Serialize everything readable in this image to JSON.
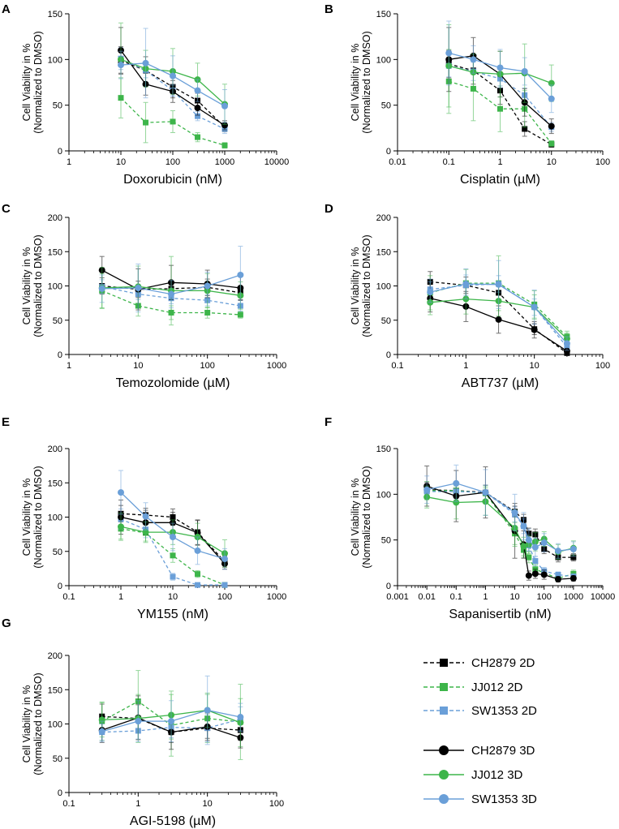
{
  "colors": {
    "CH2879": "#000000",
    "JJ012": "#3db54a",
    "SW1353": "#6a9fd8"
  },
  "legend": {
    "items": [
      {
        "label": "CH2879 2D",
        "line": "CH2879",
        "dim": "2D"
      },
      {
        "label": "JJ012 2D",
        "line": "JJ012",
        "dim": "2D"
      },
      {
        "label": "SW1353 2D",
        "line": "SW1353",
        "dim": "2D"
      },
      {
        "label": "CH2879 3D",
        "line": "CH2879",
        "dim": "3D"
      },
      {
        "label": "JJ012 3D",
        "line": "JJ012",
        "dim": "3D"
      },
      {
        "label": "SW1353 3D",
        "line": "SW1353",
        "dim": "3D"
      }
    ]
  },
  "chart_data": [
    {
      "panel": "A",
      "type": "line",
      "xscale": "log",
      "xlabel": "Doxorubicin (nM)",
      "ylabel_1": "Cell Viability in %",
      "ylabel_2": "(Normalized to DMSO)",
      "xlim": [
        1,
        10000
      ],
      "ylim": [
        0,
        150
      ],
      "xticks": [
        "1",
        "10",
        "100",
        "1000",
        "10000"
      ],
      "yticks": [
        "0",
        "50",
        "100",
        "150"
      ],
      "x": [
        10,
        30,
        100,
        300,
        1000
      ],
      "series": [
        {
          "name": "CH2879 2D",
          "values": [
            99,
            88,
            70,
            55,
            26
          ],
          "errors": [
            15,
            15,
            12,
            8,
            5
          ]
        },
        {
          "name": "JJ012 2D",
          "values": [
            58,
            31,
            32,
            15,
            6
          ],
          "errors": [
            22,
            22,
            12,
            5,
            3
          ]
        },
        {
          "name": "SW1353 2D",
          "values": [
            101,
            88,
            66,
            38,
            24
          ],
          "errors": [
            12,
            8,
            6,
            5,
            5
          ]
        },
        {
          "name": "CH2879 3D",
          "values": [
            110,
            73,
            65,
            47,
            28
          ],
          "errors": [
            25,
            12,
            12,
            8,
            5
          ]
        },
        {
          "name": "JJ012 3D",
          "values": [
            100,
            90,
            87,
            78,
            51
          ],
          "errors": [
            40,
            20,
            25,
            18,
            22
          ]
        },
        {
          "name": "SW1353 3D",
          "values": [
            94,
            96,
            82,
            66,
            49
          ],
          "errors": [
            15,
            38,
            22,
            12,
            18
          ]
        }
      ]
    },
    {
      "panel": "B",
      "type": "line",
      "xscale": "log",
      "xlabel": "Cisplatin (µM)",
      "ylabel_1": "Cell Viability in %",
      "ylabel_2": "(Normalized to DMSO)",
      "xlim": [
        0.01,
        100
      ],
      "ylim": [
        0,
        150
      ],
      "xticks": [
        "0.01",
        "0.1",
        "1",
        "10",
        "100"
      ],
      "yticks": [
        "0",
        "50",
        "100",
        "150"
      ],
      "x": [
        0.1,
        0.3,
        1,
        3,
        10
      ],
      "series": [
        {
          "name": "CH2879 2D",
          "values": [
            95,
            88,
            66,
            24,
            7
          ],
          "errors": [
            15,
            15,
            15,
            8,
            3
          ]
        },
        {
          "name": "JJ012 2D",
          "values": [
            76,
            68,
            46,
            46,
            8
          ],
          "errors": [
            35,
            35,
            25,
            20,
            3
          ]
        },
        {
          "name": "SW1353 2D",
          "values": [
            93,
            87,
            79,
            61,
            26
          ],
          "errors": [
            12,
            10,
            10,
            8,
            5
          ]
        },
        {
          "name": "CH2879 3D",
          "values": [
            100,
            104,
            84,
            53,
            27
          ],
          "errors": [
            35,
            20,
            25,
            15,
            8
          ]
        },
        {
          "name": "JJ012 3D",
          "values": [
            93,
            86,
            84,
            85,
            74
          ],
          "errors": [
            45,
            20,
            25,
            32,
            20
          ]
        },
        {
          "name": "SW1353 3D",
          "values": [
            107,
            100,
            91,
            87,
            57
          ],
          "errors": [
            35,
            15,
            20,
            15,
            15
          ]
        }
      ]
    },
    {
      "panel": "C",
      "type": "line",
      "xscale": "log",
      "xlabel": "Temozolomide (µM)",
      "ylabel_1": "Cell Viability in %",
      "ylabel_2": "(Normalized to DMSO)",
      "xlim": [
        1,
        1000
      ],
      "ylim": [
        0,
        200
      ],
      "xticks": [
        "1",
        "10",
        "100",
        "1000"
      ],
      "yticks": [
        "0",
        "50",
        "100",
        "150",
        "200"
      ],
      "x": [
        3,
        10,
        30,
        100,
        300
      ],
      "series": [
        {
          "name": "CH2879 2D",
          "values": [
            100,
            95,
            96,
            98,
            90
          ],
          "errors": [
            12,
            12,
            12,
            12,
            10
          ]
        },
        {
          "name": "JJ012 2D",
          "values": [
            93,
            71,
            61,
            61,
            58
          ],
          "errors": [
            25,
            15,
            10,
            8,
            5
          ]
        },
        {
          "name": "SW1353 2D",
          "values": [
            99,
            88,
            82,
            79,
            71
          ],
          "errors": [
            10,
            8,
            8,
            8,
            8
          ]
        },
        {
          "name": "CH2879 3D",
          "values": [
            123,
            95,
            105,
            103,
            97
          ],
          "errors": [
            20,
            30,
            25,
            20,
            18
          ]
        },
        {
          "name": "JJ012 3D",
          "values": [
            97,
            99,
            93,
            93,
            86
          ],
          "errors": [
            30,
            30,
            50,
            25,
            20
          ]
        },
        {
          "name": "SW1353 3D",
          "values": [
            96,
            97,
            88,
            100,
            116
          ],
          "errors": [
            20,
            35,
            20,
            20,
            42
          ]
        }
      ]
    },
    {
      "panel": "D",
      "type": "line",
      "xscale": "log",
      "xlabel": "ABT737 (µM)",
      "ylabel_1": "Cell Viability in %",
      "ylabel_2": "(Normalized to DMSO)",
      "xlim": [
        0.1,
        100
      ],
      "ylim": [
        0,
        200
      ],
      "xticks": [
        "0.1",
        "1",
        "10",
        "100"
      ],
      "yticks": [
        "0",
        "50",
        "100",
        "150",
        "200"
      ],
      "x": [
        0.3,
        1,
        3,
        10,
        30
      ],
      "series": [
        {
          "name": "CH2879 2D",
          "values": [
            106,
            101,
            90,
            37,
            2
          ],
          "errors": [
            15,
            12,
            12,
            8,
            2
          ]
        },
        {
          "name": "JJ012 2D",
          "values": [
            90,
            104,
            104,
            73,
            26
          ],
          "errors": [
            25,
            20,
            40,
            20,
            8
          ]
        },
        {
          "name": "SW1353 2D",
          "values": [
            95,
            101,
            103,
            69,
            11
          ],
          "errors": [
            15,
            15,
            12,
            12,
            5
          ]
        },
        {
          "name": "CH2879 3D",
          "values": [
            82,
            70,
            51,
            36,
            5
          ],
          "errors": [
            20,
            22,
            20,
            12,
            3
          ]
        },
        {
          "name": "JJ012 3D",
          "values": [
            76,
            81,
            78,
            69,
            23
          ],
          "errors": [
            18,
            22,
            22,
            18,
            8
          ]
        },
        {
          "name": "SW1353 3D",
          "values": [
            91,
            103,
            102,
            69,
            16
          ],
          "errors": [
            15,
            22,
            35,
            25,
            10
          ]
        }
      ]
    },
    {
      "panel": "E",
      "type": "line",
      "xscale": "log",
      "xlabel": "YM155 (nM)",
      "ylabel_1": "Cell Viability in %",
      "ylabel_2": "(Normalized to DMSO)",
      "xlim": [
        0.1,
        1000
      ],
      "ylim": [
        0,
        200
      ],
      "xticks": [
        "0.1",
        "1",
        "10",
        "100",
        "1000"
      ],
      "yticks": [
        "0",
        "50",
        "100",
        "150",
        "200"
      ],
      "x": [
        1,
        3,
        10,
        30,
        100
      ],
      "series": [
        {
          "name": "CH2879 2D",
          "values": [
            105,
            103,
            100,
            78,
            35
          ],
          "errors": [
            12,
            10,
            12,
            18,
            8
          ]
        },
        {
          "name": "JJ012 2D",
          "values": [
            83,
            77,
            44,
            17,
            1
          ],
          "errors": [
            15,
            12,
            10,
            5,
            2
          ]
        },
        {
          "name": "SW1353 2D",
          "values": [
            97,
            82,
            13,
            1,
            1
          ],
          "errors": [
            15,
            12,
            5,
            1,
            1
          ]
        },
        {
          "name": "CH2879 3D",
          "values": [
            100,
            92,
            92,
            77,
            32
          ],
          "errors": [
            25,
            18,
            15,
            18,
            8
          ]
        },
        {
          "name": "JJ012 3D",
          "values": [
            86,
            78,
            78,
            71,
            47
          ],
          "errors": [
            20,
            15,
            18,
            20,
            20
          ]
        },
        {
          "name": "SW1353 3D",
          "values": [
            136,
            101,
            71,
            51,
            39
          ],
          "errors": [
            32,
            20,
            20,
            20,
            15
          ]
        }
      ]
    },
    {
      "panel": "F",
      "type": "line",
      "xscale": "log",
      "xlabel": "Sapanisertib (nM)",
      "ylabel_1": "Cell Viability in %",
      "ylabel_2": "(Normalized to DMSO)",
      "xlim": [
        0.001,
        10000
      ],
      "ylim": [
        0,
        150
      ],
      "xticks": [
        "0.001",
        "0.01",
        "0.1",
        "1",
        "10",
        "100",
        "1000",
        "10000"
      ],
      "yticks": [
        "0",
        "50",
        "100",
        "150"
      ],
      "x": [
        0.01,
        0.1,
        1,
        10,
        20,
        30,
        50,
        100,
        300,
        1000
      ],
      "series": [
        {
          "name": "CH2879 2D",
          "values": [
            105,
            104,
            102,
            81,
            72,
            57,
            56,
            40,
            31,
            31
          ],
          "errors": [
            8,
            8,
            8,
            6,
            6,
            6,
            6,
            5,
            5,
            4
          ]
        },
        {
          "name": "JJ012 2D",
          "values": [
            104,
            104,
            101,
            57,
            39,
            31,
            18,
            14,
            8,
            13
          ],
          "errors": [
            10,
            8,
            8,
            12,
            8,
            6,
            5,
            4,
            3,
            4
          ]
        },
        {
          "name": "SW1353 2D",
          "values": [
            103,
            103,
            102,
            78,
            65,
            44,
            27,
            16,
            12,
            10
          ],
          "errors": [
            8,
            8,
            8,
            8,
            8,
            6,
            5,
            4,
            3,
            3
          ]
        },
        {
          "name": "CH2879 3D",
          "values": [
            109,
            98,
            102,
            60,
            45,
            11,
            13,
            12,
            7,
            8
          ],
          "errors": [
            22,
            28,
            28,
            30,
            15,
            5,
            5,
            5,
            3,
            3
          ]
        },
        {
          "name": "JJ012 3D",
          "values": [
            97,
            91,
            92,
            63,
            43,
            45,
            48,
            51,
            37,
            41
          ],
          "errors": [
            12,
            18,
            15,
            20,
            10,
            10,
            10,
            8,
            8,
            8
          ]
        },
        {
          "name": "SW1353 3D",
          "values": [
            105,
            112,
            102,
            80,
            65,
            50,
            42,
            47,
            38,
            40
          ],
          "errors": [
            15,
            20,
            25,
            20,
            15,
            12,
            10,
            10,
            8,
            8
          ]
        }
      ]
    },
    {
      "panel": "G",
      "type": "line",
      "xscale": "log",
      "xlabel": "AGI-5198 (µM)",
      "ylabel_1": "Cell Viability in %",
      "ylabel_2": "(Normalized to DMSO)",
      "xlim": [
        0.1,
        100
      ],
      "ylim": [
        0,
        200
      ],
      "xticks": [
        "0.1",
        "1",
        "10",
        "100"
      ],
      "yticks": [
        "0",
        "50",
        "100",
        "150",
        "200"
      ],
      "x": [
        0.3,
        1,
        3,
        10,
        30
      ],
      "series": [
        {
          "name": "CH2879 2D",
          "values": [
            111,
            108,
            88,
            94,
            91
          ],
          "errors": [
            18,
            20,
            15,
            15,
            15
          ]
        },
        {
          "name": "JJ012 2D",
          "values": [
            104,
            133,
            98,
            108,
            103
          ],
          "errors": [
            28,
            45,
            45,
            35,
            55
          ]
        },
        {
          "name": "SW1353 2D",
          "values": [
            88,
            90,
            95,
            94,
            107
          ],
          "errors": [
            12,
            12,
            15,
            20,
            18
          ]
        },
        {
          "name": "CH2879 3D",
          "values": [
            91,
            109,
            88,
            96,
            80
          ],
          "errors": [
            18,
            32,
            25,
            20,
            15
          ]
        },
        {
          "name": "JJ012 3D",
          "values": [
            106,
            108,
            113,
            120,
            102
          ],
          "errors": [
            25,
            35,
            35,
            25,
            35
          ]
        },
        {
          "name": "SW1353 3D",
          "values": [
            89,
            104,
            104,
            120,
            110
          ],
          "errors": [
            15,
            30,
            30,
            50,
            20
          ]
        }
      ]
    }
  ]
}
